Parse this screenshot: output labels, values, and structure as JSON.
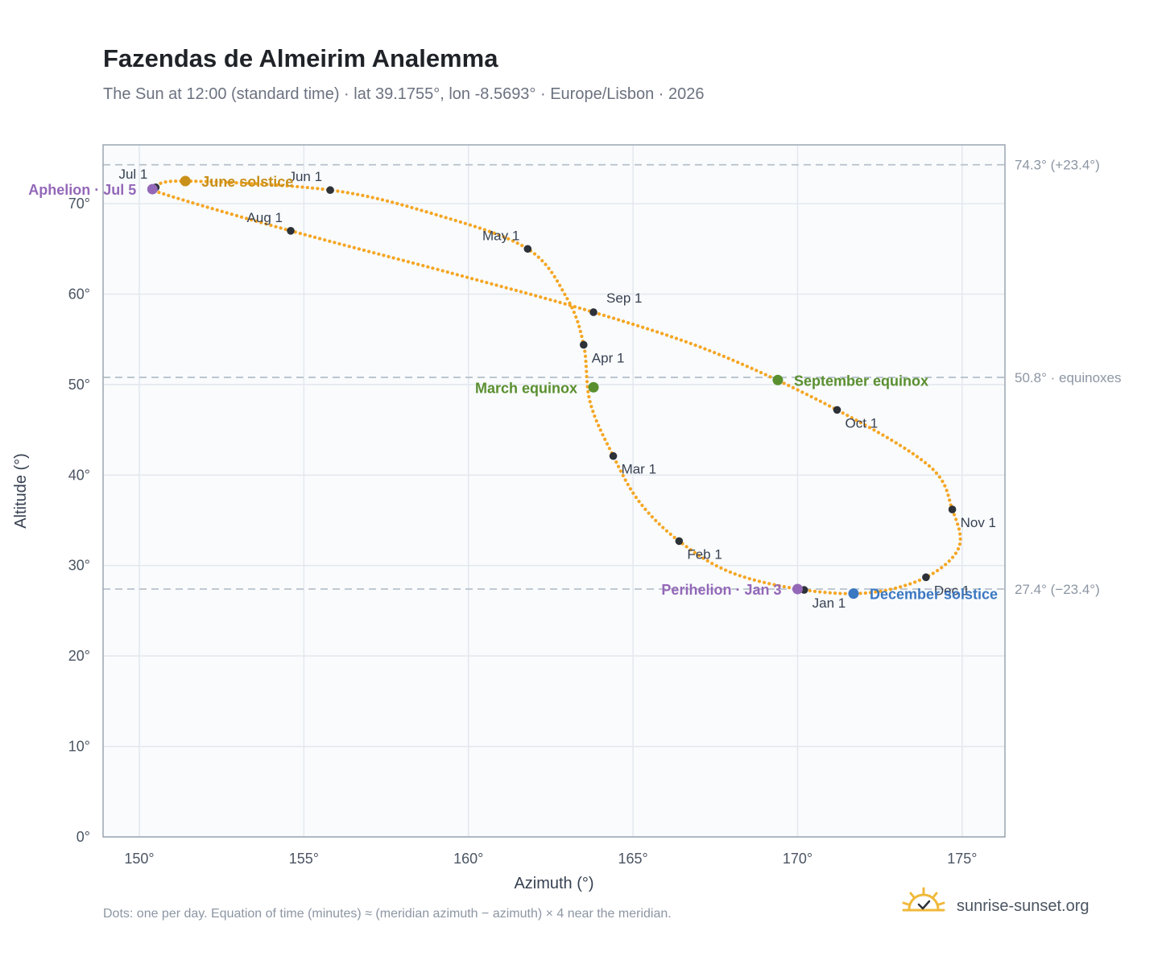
{
  "header": {
    "title": "Fazendas de Almeirim Analemma",
    "subtitle": "The Sun at 12:00 (standard time) · lat 39.1755°, lon -8.5693° · Europe/Lisbon · 2026"
  },
  "footer": {
    "note": "Dots: one per day. Equation of time (minutes) ≈ (meridian azimuth − azimuth) × 4 near the meridian.",
    "brand": "sunrise-sunset.org"
  },
  "colors": {
    "curve": "#f5a623",
    "month_dot": "#2d3138",
    "june_solstice": "#c9901b",
    "december_solstice": "#3b78c2",
    "equinox": "#5a8f2f",
    "apsis": "#9468b8",
    "ref_line": "#b8c2cc",
    "plot_bg": "#f9fbfd",
    "frame": "#9aa5b1"
  },
  "chart_data": {
    "type": "scatter",
    "xlabel": "Azimuth (°)",
    "ylabel": "Altitude (°)",
    "xlim": [
      148.9,
      176.3
    ],
    "ylim": [
      0,
      76.5
    ],
    "x_ticks": [
      150,
      155,
      160,
      165,
      170,
      175
    ],
    "x_tick_labels": [
      "150°",
      "155°",
      "160°",
      "165°",
      "170°",
      "175°"
    ],
    "y_ticks": [
      0,
      10,
      20,
      30,
      40,
      50,
      60,
      70
    ],
    "y_tick_labels": [
      "0°",
      "10°",
      "20°",
      "30°",
      "40°",
      "50°",
      "60°",
      "70°"
    ],
    "grid": true,
    "reference_lines": [
      {
        "y": 74.3,
        "label": "74.3° (+23.4°)"
      },
      {
        "y": 50.8,
        "label": "50.8° · equinoxes"
      },
      {
        "y": 27.4,
        "label": "27.4° (−23.4°)"
      }
    ],
    "month_markers": [
      {
        "label": "Jan 1",
        "az": 170.2,
        "alt": 27.3,
        "pos": "below-right"
      },
      {
        "label": "Feb 1",
        "az": 166.4,
        "alt": 32.7,
        "pos": "below-right"
      },
      {
        "label": "Mar 1",
        "az": 164.4,
        "alt": 42.1,
        "pos": "below-right"
      },
      {
        "label": "Apr 1",
        "az": 163.5,
        "alt": 54.4,
        "pos": "below-right"
      },
      {
        "label": "May 1",
        "az": 161.8,
        "alt": 65.0,
        "pos": "above-left"
      },
      {
        "label": "Jun 1",
        "az": 155.8,
        "alt": 71.5,
        "pos": "above-left"
      },
      {
        "label": "Jul 1",
        "az": 150.5,
        "alt": 71.8,
        "pos": "above-left"
      },
      {
        "label": "Aug 1",
        "az": 154.6,
        "alt": 67.0,
        "pos": "above-left"
      },
      {
        "label": "Sep 1",
        "az": 163.8,
        "alt": 58.0,
        "pos": "above-right"
      },
      {
        "label": "Oct 1",
        "az": 171.2,
        "alt": 47.2,
        "pos": "below-right"
      },
      {
        "label": "Nov 1",
        "az": 174.7,
        "alt": 36.2,
        "pos": "below-right"
      },
      {
        "label": "Dec 1",
        "az": 173.9,
        "alt": 28.7,
        "pos": "below-right"
      }
    ],
    "events": [
      {
        "label": "June solstice",
        "az": 151.4,
        "alt": 72.5,
        "color_key": "june_solstice",
        "pos": "right"
      },
      {
        "label": "Aphelion · Jul 5",
        "az": 150.4,
        "alt": 71.6,
        "color_key": "apsis",
        "pos": "left"
      },
      {
        "label": "March equinox",
        "az": 163.8,
        "alt": 49.7,
        "color_key": "equinox",
        "pos": "left"
      },
      {
        "label": "September equinox",
        "az": 169.4,
        "alt": 50.5,
        "color_key": "equinox",
        "pos": "right"
      },
      {
        "label": "Perihelion · Jan 3",
        "az": 170.0,
        "alt": 27.4,
        "color_key": "apsis",
        "pos": "left"
      },
      {
        "label": "December solstice",
        "az": 171.7,
        "alt": 26.9,
        "color_key": "december_solstice",
        "pos": "right"
      }
    ],
    "curve_control_points": [
      [
        170.2,
        27.3
      ],
      [
        168.0,
        29.2
      ],
      [
        166.4,
        32.7
      ],
      [
        165.2,
        37.0
      ],
      [
        164.4,
        42.1
      ],
      [
        163.7,
        48.0
      ],
      [
        163.5,
        54.4
      ],
      [
        163.0,
        59.5
      ],
      [
        161.8,
        65.0
      ],
      [
        159.0,
        68.8
      ],
      [
        155.8,
        71.5
      ],
      [
        151.4,
        72.5
      ],
      [
        150.5,
        71.8
      ],
      [
        150.8,
        71.0
      ],
      [
        154.6,
        67.0
      ],
      [
        159.5,
        62.3
      ],
      [
        163.8,
        58.0
      ],
      [
        167.5,
        53.5
      ],
      [
        171.2,
        47.2
      ],
      [
        174.0,
        41.0
      ],
      [
        174.7,
        36.2
      ],
      [
        174.9,
        32.0
      ],
      [
        173.9,
        28.7
      ],
      [
        172.2,
        27.0
      ],
      [
        170.2,
        27.3
      ]
    ]
  }
}
